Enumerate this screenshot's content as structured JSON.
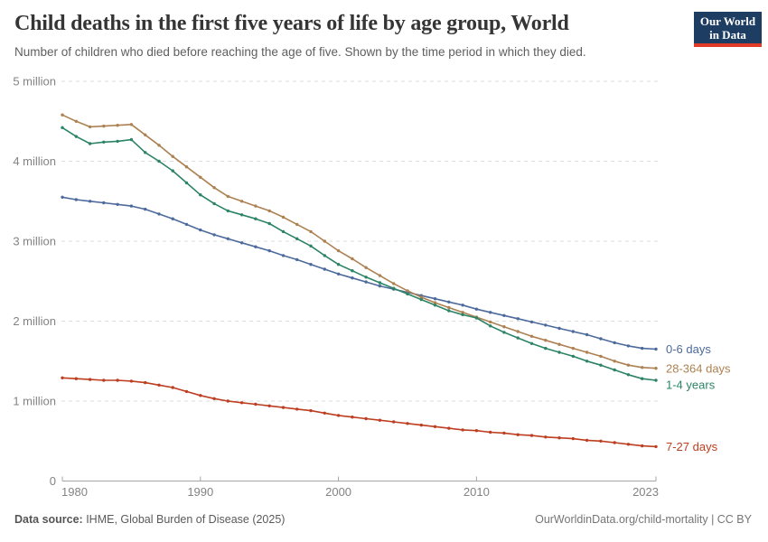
{
  "header": {
    "title": "Child deaths in the first five years of life by age group, World",
    "subtitle": "Number of children who died before reaching the age of five. Shown by the time period in which they died.",
    "logo": {
      "line1": "Our World",
      "line2": "in Data",
      "bg_color": "#1d3d63",
      "accent_color": "#e13b28"
    }
  },
  "chart_data": {
    "type": "line",
    "title": "Child deaths in the first five years of life by age group, World",
    "xlabel": "",
    "ylabel": "",
    "unit": "million deaths",
    "grid": "horizontal-dashed",
    "legend_position": "right-end-labels",
    "ylim": [
      0,
      5
    ],
    "xlim": [
      1980,
      2023
    ],
    "x_ticks": [
      1980,
      1990,
      2000,
      2010,
      2023
    ],
    "y_ticks": [
      {
        "value": 0,
        "label": "0"
      },
      {
        "value": 1,
        "label": "1 million"
      },
      {
        "value": 2,
        "label": "2 million"
      },
      {
        "value": 3,
        "label": "3 million"
      },
      {
        "value": 4,
        "label": "4 million"
      },
      {
        "value": 5,
        "label": "5 million"
      }
    ],
    "x": [
      1980,
      1981,
      1982,
      1983,
      1984,
      1985,
      1986,
      1987,
      1988,
      1989,
      1990,
      1991,
      1992,
      1993,
      1994,
      1995,
      1996,
      1997,
      1998,
      1999,
      2000,
      2001,
      2002,
      2003,
      2004,
      2005,
      2006,
      2007,
      2008,
      2009,
      2010,
      2011,
      2012,
      2013,
      2014,
      2015,
      2016,
      2017,
      2018,
      2019,
      2020,
      2021,
      2022,
      2023
    ],
    "series": [
      {
        "name": "0-6 days",
        "color": "#4C6A9C",
        "values": [
          3.55,
          3.52,
          3.5,
          3.48,
          3.46,
          3.44,
          3.4,
          3.34,
          3.28,
          3.21,
          3.14,
          3.08,
          3.03,
          2.98,
          2.93,
          2.88,
          2.82,
          2.77,
          2.71,
          2.65,
          2.59,
          2.54,
          2.49,
          2.44,
          2.4,
          2.36,
          2.32,
          2.28,
          2.24,
          2.2,
          2.15,
          2.11,
          2.07,
          2.03,
          1.99,
          1.95,
          1.91,
          1.87,
          1.83,
          1.78,
          1.73,
          1.69,
          1.66,
          1.65
        ]
      },
      {
        "name": "28-364 days",
        "color": "#AD8152",
        "values": [
          4.58,
          4.5,
          4.43,
          4.44,
          4.45,
          4.46,
          4.33,
          4.2,
          4.06,
          3.93,
          3.8,
          3.67,
          3.56,
          3.5,
          3.44,
          3.38,
          3.3,
          3.21,
          3.12,
          3.0,
          2.88,
          2.78,
          2.67,
          2.57,
          2.47,
          2.38,
          2.3,
          2.23,
          2.17,
          2.11,
          2.05,
          1.99,
          1.93,
          1.87,
          1.81,
          1.76,
          1.71,
          1.66,
          1.61,
          1.56,
          1.5,
          1.45,
          1.42,
          1.41
        ]
      },
      {
        "name": "1-4 years",
        "color": "#2C8465",
        "values": [
          4.42,
          4.31,
          4.22,
          4.24,
          4.25,
          4.27,
          4.11,
          4.0,
          3.88,
          3.73,
          3.58,
          3.47,
          3.38,
          3.33,
          3.28,
          3.22,
          3.12,
          3.03,
          2.94,
          2.82,
          2.71,
          2.63,
          2.55,
          2.48,
          2.41,
          2.34,
          2.27,
          2.2,
          2.13,
          2.08,
          2.04,
          1.94,
          1.86,
          1.79,
          1.72,
          1.66,
          1.61,
          1.56,
          1.5,
          1.45,
          1.39,
          1.33,
          1.28,
          1.26
        ]
      },
      {
        "name": "7-27 days",
        "color": "#BD3E20",
        "values": [
          1.29,
          1.28,
          1.27,
          1.26,
          1.26,
          1.25,
          1.23,
          1.2,
          1.17,
          1.12,
          1.07,
          1.03,
          1.0,
          0.98,
          0.96,
          0.94,
          0.92,
          0.9,
          0.88,
          0.85,
          0.82,
          0.8,
          0.78,
          0.76,
          0.74,
          0.72,
          0.7,
          0.68,
          0.66,
          0.64,
          0.63,
          0.61,
          0.6,
          0.58,
          0.57,
          0.55,
          0.54,
          0.53,
          0.51,
          0.5,
          0.48,
          0.46,
          0.44,
          0.43
        ]
      }
    ]
  },
  "footer": {
    "source_label": "Data source:",
    "source_text": " IHME, Global Burden of Disease (2025)",
    "link_text": "OurWorldinData.org/child-mortality | CC BY"
  }
}
